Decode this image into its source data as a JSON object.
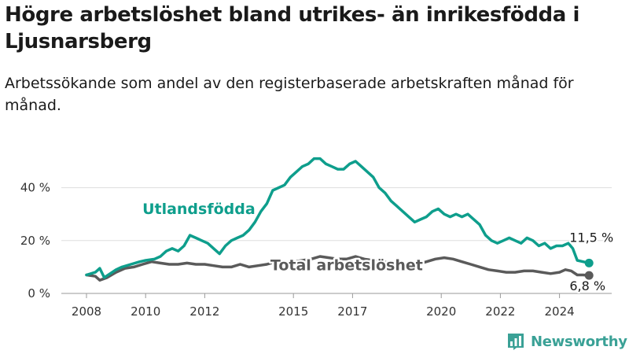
{
  "title": "Högre arbetslöshet bland utrikes- än inrikesfödda i Ljusnarsberg",
  "subtitle": "Arbetssökande som andel av den registerbaserade arbetskraften månad för månad.",
  "brand": {
    "name": "Newsworthy",
    "icon": "bar-chart-logo-icon",
    "color": "#3aa196"
  },
  "chart_data": {
    "type": "line",
    "x_unit": "year",
    "xlim": [
      2007.6,
      2025.2
    ],
    "ylim": [
      0,
      50
    ],
    "y_ticks": [
      0,
      20,
      40
    ],
    "y_tick_labels": [
      "0 %",
      "20 %",
      "40 %"
    ],
    "x_ticks": [
      2008,
      2010,
      2012,
      2015,
      2017,
      2020,
      2022,
      2024
    ],
    "x_tick_labels": [
      "2008",
      "2010",
      "2012",
      "2015",
      "2017",
      "2020",
      "2022",
      "2024"
    ],
    "grid": "horizontal",
    "legend": "none",
    "series": [
      {
        "name": "Utlandsfödda",
        "color": "#0e9e8c",
        "label_at": [
          2011.8,
          30
        ],
        "end_label": "11,5 %",
        "points": [
          [
            2008.0,
            7
          ],
          [
            2008.3,
            8
          ],
          [
            2008.45,
            9.5
          ],
          [
            2008.6,
            6
          ],
          [
            2008.8,
            7.5
          ],
          [
            2009.0,
            9
          ],
          [
            2009.2,
            10
          ],
          [
            2009.5,
            11
          ],
          [
            2009.8,
            12
          ],
          [
            2010.0,
            12.5
          ],
          [
            2010.3,
            13
          ],
          [
            2010.5,
            14
          ],
          [
            2010.7,
            16
          ],
          [
            2010.9,
            17
          ],
          [
            2011.1,
            16
          ],
          [
            2011.3,
            18
          ],
          [
            2011.5,
            22
          ],
          [
            2011.7,
            21
          ],
          [
            2011.9,
            20
          ],
          [
            2012.1,
            19
          ],
          [
            2012.3,
            17
          ],
          [
            2012.5,
            15
          ],
          [
            2012.7,
            18
          ],
          [
            2012.9,
            20
          ],
          [
            2013.1,
            21
          ],
          [
            2013.3,
            22
          ],
          [
            2013.5,
            24
          ],
          [
            2013.7,
            27
          ],
          [
            2013.9,
            31
          ],
          [
            2014.1,
            34
          ],
          [
            2014.3,
            39
          ],
          [
            2014.5,
            40
          ],
          [
            2014.7,
            41
          ],
          [
            2014.9,
            44
          ],
          [
            2015.1,
            46
          ],
          [
            2015.3,
            48
          ],
          [
            2015.5,
            49
          ],
          [
            2015.7,
            51
          ],
          [
            2015.9,
            51
          ],
          [
            2016.1,
            49
          ],
          [
            2016.3,
            48
          ],
          [
            2016.5,
            47
          ],
          [
            2016.7,
            47
          ],
          [
            2016.9,
            49
          ],
          [
            2017.1,
            50
          ],
          [
            2017.3,
            48
          ],
          [
            2017.5,
            46
          ],
          [
            2017.7,
            44
          ],
          [
            2017.9,
            40
          ],
          [
            2018.1,
            38
          ],
          [
            2018.3,
            35
          ],
          [
            2018.5,
            33
          ],
          [
            2018.7,
            31
          ],
          [
            2018.9,
            29
          ],
          [
            2019.1,
            27
          ],
          [
            2019.3,
            28
          ],
          [
            2019.5,
            29
          ],
          [
            2019.7,
            31
          ],
          [
            2019.9,
            32
          ],
          [
            2020.1,
            30
          ],
          [
            2020.3,
            29
          ],
          [
            2020.5,
            30
          ],
          [
            2020.7,
            29
          ],
          [
            2020.9,
            30
          ],
          [
            2021.1,
            28
          ],
          [
            2021.3,
            26
          ],
          [
            2021.5,
            22
          ],
          [
            2021.7,
            20
          ],
          [
            2021.9,
            19
          ],
          [
            2022.1,
            20
          ],
          [
            2022.3,
            21
          ],
          [
            2022.5,
            20
          ],
          [
            2022.7,
            19
          ],
          [
            2022.9,
            21
          ],
          [
            2023.1,
            20
          ],
          [
            2023.3,
            18
          ],
          [
            2023.5,
            19
          ],
          [
            2023.7,
            17
          ],
          [
            2023.9,
            18
          ],
          [
            2024.1,
            18
          ],
          [
            2024.3,
            19
          ],
          [
            2024.45,
            17
          ],
          [
            2024.6,
            12.5
          ],
          [
            2024.8,
            12
          ],
          [
            2025.0,
            11.5
          ]
        ]
      },
      {
        "name": "Total arbetslöshet",
        "color": "#5a5a5a",
        "label_at": [
          2016.8,
          8.8
        ],
        "end_label": "6,8 %",
        "points": [
          [
            2008.0,
            7
          ],
          [
            2008.3,
            6.5
          ],
          [
            2008.45,
            5
          ],
          [
            2008.7,
            6
          ],
          [
            2009.0,
            8
          ],
          [
            2009.3,
            9.5
          ],
          [
            2009.6,
            10
          ],
          [
            2009.9,
            11
          ],
          [
            2010.2,
            12
          ],
          [
            2010.5,
            11.5
          ],
          [
            2010.8,
            11
          ],
          [
            2011.1,
            11
          ],
          [
            2011.4,
            11.5
          ],
          [
            2011.7,
            11
          ],
          [
            2012.0,
            11
          ],
          [
            2012.3,
            10.5
          ],
          [
            2012.6,
            10
          ],
          [
            2012.9,
            10
          ],
          [
            2013.2,
            11
          ],
          [
            2013.5,
            10
          ],
          [
            2013.8,
            10.5
          ],
          [
            2014.1,
            11
          ],
          [
            2014.4,
            12
          ],
          [
            2014.7,
            11.5
          ],
          [
            2015.0,
            12
          ],
          [
            2015.3,
            12.5
          ],
          [
            2015.6,
            13
          ],
          [
            2015.9,
            14
          ],
          [
            2016.2,
            13.5
          ],
          [
            2016.5,
            13
          ],
          [
            2016.8,
            13
          ],
          [
            2017.1,
            14
          ],
          [
            2017.4,
            13
          ],
          [
            2017.7,
            12.5
          ],
          [
            2018.0,
            12
          ],
          [
            2018.3,
            11.5
          ],
          [
            2018.6,
            11
          ],
          [
            2018.9,
            11
          ],
          [
            2019.2,
            11
          ],
          [
            2019.5,
            12
          ],
          [
            2019.8,
            13
          ],
          [
            2020.1,
            13.5
          ],
          [
            2020.4,
            13
          ],
          [
            2020.7,
            12
          ],
          [
            2021.0,
            11
          ],
          [
            2021.3,
            10
          ],
          [
            2021.6,
            9
          ],
          [
            2021.9,
            8.5
          ],
          [
            2022.2,
            8
          ],
          [
            2022.5,
            8
          ],
          [
            2022.8,
            8.5
          ],
          [
            2023.1,
            8.5
          ],
          [
            2023.4,
            8
          ],
          [
            2023.7,
            7.5
          ],
          [
            2024.0,
            8
          ],
          [
            2024.2,
            9
          ],
          [
            2024.4,
            8.5
          ],
          [
            2024.6,
            7
          ],
          [
            2024.8,
            7
          ],
          [
            2025.0,
            6.8
          ]
        ]
      }
    ]
  }
}
